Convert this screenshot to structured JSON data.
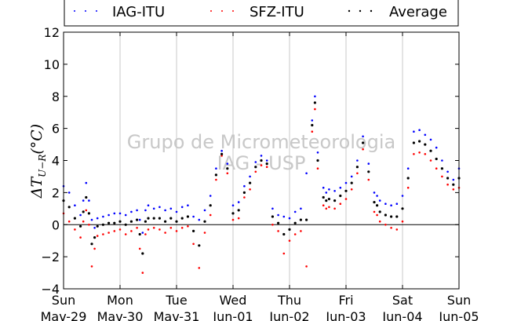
{
  "chart_data": {
    "type": "scatter",
    "title": "",
    "xlabel": "",
    "ylabel": "ΔT_{U−R}(°C)",
    "ylabel_main": "ΔT",
    "ylabel_sub": "U−R",
    "ylabel_unit": "(°C)",
    "ylim": [
      -4,
      12
    ],
    "yticks": [
      -4,
      -2,
      0,
      2,
      4,
      6,
      8,
      10,
      12
    ],
    "xlim": [
      0,
      7
    ],
    "x_unit": "days from Sun May-29 00:00",
    "xticks": [
      {
        "day": "Sun",
        "date": "Mav-29"
      },
      {
        "day": "Mon",
        "date": "Mav-30"
      },
      {
        "day": "Tue",
        "date": "Mav-31"
      },
      {
        "day": "Wed",
        "date": "Jun-01"
      },
      {
        "day": "Thu",
        "date": "Jun-02"
      },
      {
        "day": "Fri",
        "date": "Jun-03"
      },
      {
        "day": "Sat",
        "date": "Jun-04"
      },
      {
        "day": "Sun",
        "date": "Jun-05"
      }
    ],
    "grid": "vertical",
    "zero_line": true,
    "legend_position": "top",
    "watermark": [
      "Grupo de Micrometeorologia",
      "IAG - USP"
    ],
    "series": [
      {
        "name": "IAG-ITU",
        "color": "#0000ff",
        "x": [
          0,
          0.1,
          0.2,
          0.3,
          0.35,
          0.4,
          0.45,
          0.5,
          0.55,
          0.6,
          0.7,
          0.8,
          0.9,
          1.0,
          1.1,
          1.2,
          1.3,
          1.35,
          1.4,
          1.45,
          1.5,
          1.6,
          1.7,
          1.8,
          1.9,
          2.0,
          2.1,
          2.2,
          2.3,
          2.4,
          2.5,
          2.6,
          2.7,
          2.8,
          2.9,
          3.0,
          3.1,
          3.2,
          3.3,
          3.4,
          3.5,
          3.6,
          3.7,
          3.8,
          3.9,
          4.0,
          4.1,
          4.2,
          4.3,
          4.4,
          4.45,
          4.5,
          4.6,
          4.65,
          4.7,
          4.8,
          4.9,
          5.0,
          5.1,
          5.2,
          5.3,
          5.4,
          5.5,
          5.55,
          5.6,
          5.7,
          5.8,
          5.9,
          6.0,
          6.1,
          6.2,
          6.3,
          6.4,
          6.5,
          6.6,
          6.7,
          6.8,
          6.9,
          7.0
        ],
        "y": [
          2.4,
          2.0,
          1.2,
          0.6,
          1.5,
          2.6,
          1.5,
          0.3,
          -0.2,
          0.4,
          0.5,
          0.6,
          0.7,
          0.7,
          0.6,
          0.8,
          0.9,
          0.3,
          -0.5,
          0.9,
          1.2,
          1.0,
          1.1,
          0.9,
          1.0,
          0.8,
          1.1,
          1.2,
          0.5,
          0.3,
          0.9,
          1.8,
          3.5,
          4.6,
          3.8,
          1.2,
          1.4,
          2.4,
          3.0,
          3.9,
          4.3,
          4.0,
          1.0,
          0.6,
          0.5,
          0.4,
          0.8,
          1.0,
          3.2,
          6.5,
          8.0,
          4.5,
          2.3,
          2.0,
          2.2,
          2.1,
          2.3,
          2.6,
          3.0,
          4.0,
          5.5,
          3.8,
          2.0,
          1.8,
          1.5,
          1.3,
          1.2,
          1.3,
          1.8,
          3.5,
          5.8,
          5.9,
          5.6,
          5.3,
          4.8,
          4.0,
          3.3,
          2.8,
          3.5
        ]
      },
      {
        "name": "SFZ-ITU",
        "color": "#ff0000",
        "x": [
          0,
          0.1,
          0.2,
          0.3,
          0.35,
          0.4,
          0.45,
          0.5,
          0.55,
          0.6,
          0.7,
          0.8,
          0.9,
          1.0,
          1.1,
          1.2,
          1.3,
          1.35,
          1.4,
          1.45,
          1.5,
          1.6,
          1.7,
          1.8,
          1.9,
          2.0,
          2.1,
          2.2,
          2.3,
          2.4,
          2.5,
          2.6,
          2.7,
          2.8,
          2.9,
          3.0,
          3.1,
          3.2,
          3.3,
          3.4,
          3.5,
          3.6,
          3.7,
          3.8,
          3.9,
          4.0,
          4.1,
          4.2,
          4.3,
          4.4,
          4.45,
          4.5,
          4.6,
          4.65,
          4.7,
          4.8,
          4.9,
          5.0,
          5.1,
          5.2,
          5.3,
          5.4,
          5.5,
          5.55,
          5.6,
          5.7,
          5.8,
          5.9,
          6.0,
          6.1,
          6.2,
          6.3,
          6.4,
          6.5,
          6.6,
          6.7,
          6.8,
          6.9,
          7.0
        ],
        "y": [
          0.7,
          0.2,
          -0.3,
          -0.8,
          0.2,
          0.9,
          0.0,
          -2.6,
          -1.5,
          -0.7,
          -0.6,
          -0.5,
          -0.4,
          -0.3,
          -0.6,
          -0.4,
          -0.2,
          -1.5,
          -3.0,
          -0.6,
          -0.3,
          -0.2,
          -0.3,
          -0.5,
          -0.2,
          -0.4,
          -0.2,
          -0.1,
          -1.2,
          -2.7,
          -0.5,
          0.6,
          2.8,
          4.3,
          3.2,
          0.3,
          0.4,
          1.7,
          2.2,
          3.3,
          3.7,
          3.6,
          0.0,
          -0.4,
          -1.8,
          -1.0,
          -0.6,
          -0.4,
          -2.6,
          5.8,
          7.2,
          3.5,
          1.2,
          1.0,
          1.1,
          1.0,
          1.3,
          1.6,
          2.2,
          3.2,
          4.7,
          2.8,
          0.8,
          0.6,
          0.2,
          0.0,
          -0.2,
          -0.3,
          0.2,
          2.3,
          4.4,
          4.5,
          4.4,
          4.0,
          3.5,
          3.0,
          2.5,
          2.2,
          2.3
        ]
      },
      {
        "name": "Average",
        "color": "#000000",
        "x": [
          0,
          0.1,
          0.2,
          0.3,
          0.35,
          0.4,
          0.45,
          0.5,
          0.55,
          0.6,
          0.7,
          0.8,
          0.9,
          1.0,
          1.1,
          1.2,
          1.3,
          1.35,
          1.4,
          1.45,
          1.5,
          1.6,
          1.7,
          1.8,
          1.9,
          2.0,
          2.1,
          2.2,
          2.3,
          2.4,
          2.5,
          2.6,
          2.7,
          2.8,
          2.9,
          3.0,
          3.1,
          3.2,
          3.3,
          3.4,
          3.5,
          3.6,
          3.7,
          3.8,
          3.9,
          4.0,
          4.1,
          4.2,
          4.3,
          4.4,
          4.45,
          4.5,
          4.6,
          4.65,
          4.7,
          4.8,
          4.9,
          5.0,
          5.1,
          5.2,
          5.3,
          5.4,
          5.5,
          5.55,
          5.6,
          5.7,
          5.8,
          5.9,
          6.0,
          6.1,
          6.2,
          6.3,
          6.4,
          6.5,
          6.6,
          6.7,
          6.8,
          6.9,
          7.0
        ],
        "y": [
          1.5,
          1.1,
          0.4,
          -0.1,
          0.8,
          1.7,
          0.7,
          -1.2,
          -0.8,
          -0.1,
          0.0,
          0.1,
          0.1,
          0.2,
          0.0,
          0.2,
          0.3,
          -0.6,
          -1.8,
          0.2,
          0.4,
          0.4,
          0.4,
          0.2,
          0.4,
          0.2,
          0.4,
          0.5,
          -0.4,
          -1.3,
          0.2,
          1.2,
          3.1,
          4.4,
          3.5,
          0.7,
          0.9,
          2.0,
          2.6,
          3.6,
          4.0,
          3.8,
          0.5,
          0.1,
          -0.6,
          -0.3,
          0.1,
          0.3,
          0.3,
          6.2,
          7.6,
          4.0,
          1.7,
          1.5,
          1.6,
          1.5,
          1.8,
          2.1,
          2.6,
          3.6,
          5.1,
          3.3,
          1.4,
          1.2,
          0.8,
          0.6,
          0.5,
          0.5,
          1.0,
          2.9,
          5.1,
          5.2,
          5.0,
          4.6,
          4.1,
          3.5,
          2.9,
          2.5,
          2.9
        ]
      }
    ]
  }
}
